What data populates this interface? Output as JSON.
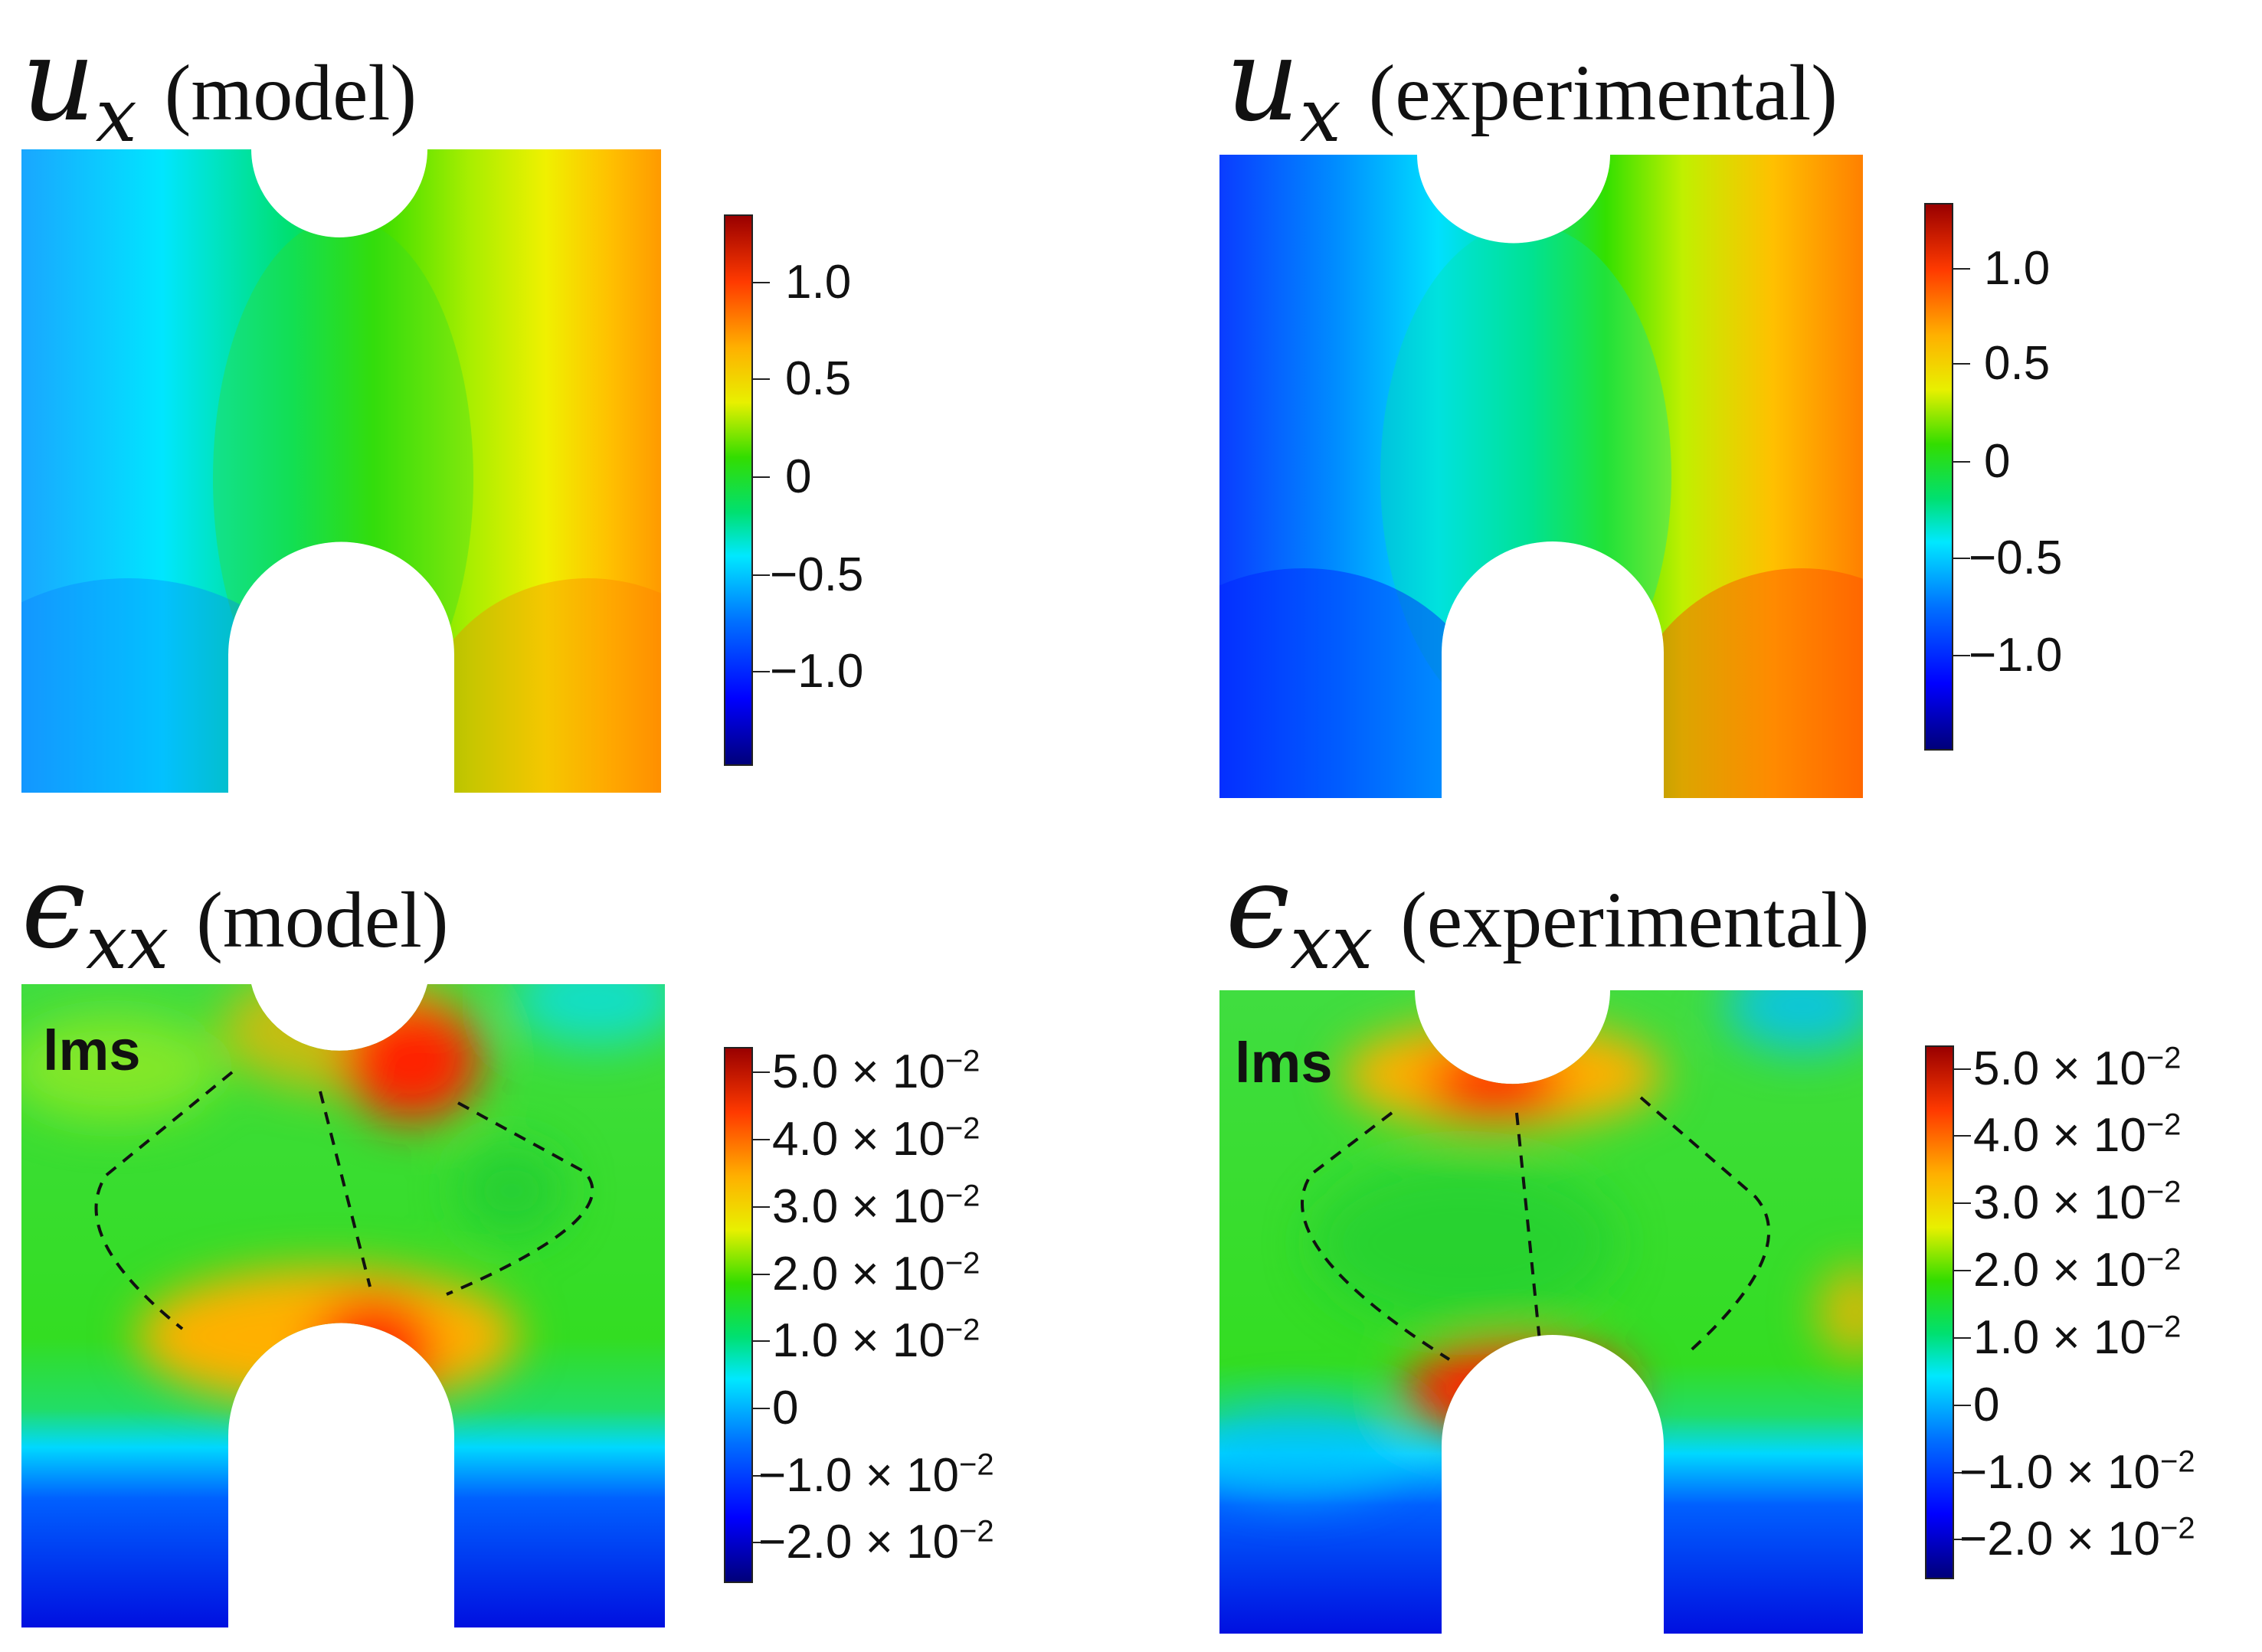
{
  "figure": {
    "panels": [
      {
        "id": "ux-model",
        "symbol": "u",
        "subscript": "x",
        "label": "(model)",
        "field_stops": [
          "#1aa6ff",
          "#00e6ff",
          "#00e070",
          "#33dd00",
          "#a8ee00",
          "#f0f000",
          "#ffc000",
          "#ff9a00"
        ],
        "colorbar": [
          "1.0",
          "0.5",
          "0",
          "−0.5",
          "−1.0"
        ]
      },
      {
        "id": "ux-experimental",
        "symbol": "u",
        "subscript": "x",
        "label": "(experimental)",
        "field_stops": [
          "#0a3cff",
          "#008cff",
          "#00e0ff",
          "#00e090",
          "#33e000",
          "#c0f000",
          "#ffc000",
          "#ff8000"
        ],
        "colorbar": [
          "1.0",
          "0.5",
          "0",
          "−0.5",
          "−1.0"
        ]
      },
      {
        "id": "exx-model",
        "symbol": "ϵ",
        "subscript": "xx",
        "label": "(model)",
        "badge": "lms",
        "colorbar": [
          {
            "m": "5.0 × 10",
            "e": "−2"
          },
          {
            "m": "4.0 × 10",
            "e": "−2"
          },
          {
            "m": "3.0 × 10",
            "e": "−2"
          },
          {
            "m": "2.0 × 10",
            "e": "−2"
          },
          {
            "m": "1.0 × 10",
            "e": "−2"
          },
          {
            "m": "0",
            "e": ""
          },
          {
            "m": "−1.0 × 10",
            "e": "−2"
          },
          {
            "m": "−2.0 × 10",
            "e": "−2"
          }
        ]
      },
      {
        "id": "exx-experimental",
        "symbol": "ϵ",
        "subscript": "xx",
        "label": "(experimental)",
        "badge": "lms",
        "colorbar": [
          {
            "m": "5.0 × 10",
            "e": "−2"
          },
          {
            "m": "4.0 × 10",
            "e": "−2"
          },
          {
            "m": "3.0 × 10",
            "e": "−2"
          },
          {
            "m": "2.0 × 10",
            "e": "−2"
          },
          {
            "m": "1.0 × 10",
            "e": "−2"
          },
          {
            "m": "0",
            "e": ""
          },
          {
            "m": "−1.0 × 10",
            "e": "−2"
          },
          {
            "m": "−2.0 × 10",
            "e": "−2"
          }
        ]
      }
    ]
  },
  "colors": {
    "text": "#111111",
    "dash": "#111111",
    "strain_green": "#33dd22",
    "strain_hot": "#ff2000",
    "strain_warm": "#ffb000",
    "strain_cold": "#0010ff"
  }
}
